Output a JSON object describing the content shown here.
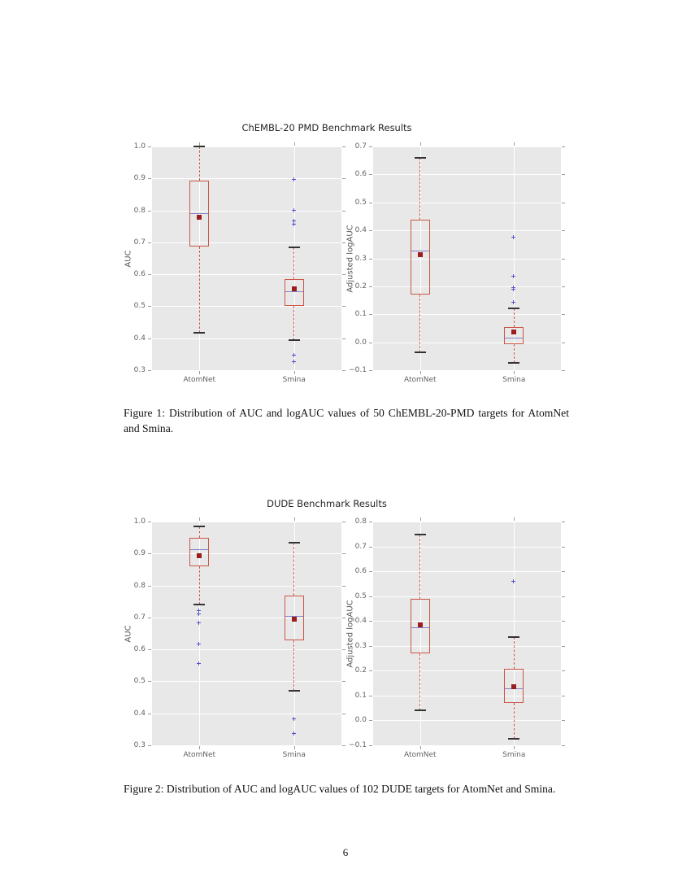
{
  "page": {
    "number": "6"
  },
  "style": {
    "plot_bg": "#e8e8e8",
    "grid": "#ffffff",
    "box_color": "#cb5747",
    "median_color": "#8383cd",
    "mean_color": "#9b1d1d",
    "flier_color": "#5353c8",
    "cap_color": "#333333",
    "tick_color": "#9a9a9a",
    "tick_label_color": "#626262",
    "title_color": "#262626"
  },
  "chart_data": [
    {
      "type": "boxplot",
      "title": "ChEMBL-20 PMD Benchmark Results",
      "caption": "Figure 1: Distribution of AUC and logAUC values of 50 ChEMBL-20-PMD targets for AtomNet and Smina.",
      "panels": [
        {
          "ylabel": "AUC",
          "ylim": [
            0.3,
            1.0
          ],
          "yticks": [
            0.3,
            0.4,
            0.5,
            0.6,
            0.7,
            0.8,
            0.9,
            1.0
          ],
          "categories": [
            "AtomNet",
            "Smina"
          ],
          "grid": true,
          "boxes": [
            {
              "label": "AtomNet",
              "whislo": 0.417,
              "q1": 0.688,
              "med": 0.791,
              "mean": 0.779,
              "q3": 0.893,
              "whishi": 0.999,
              "fliers": []
            },
            {
              "label": "Smina",
              "whislo": 0.393,
              "q1": 0.5,
              "med": 0.547,
              "mean": 0.555,
              "q3": 0.585,
              "whishi": 0.685,
              "fliers": [
                0.897,
                0.8,
                0.768,
                0.757,
                0.347,
                0.328
              ]
            }
          ]
        },
        {
          "ylabel": "Adjusted logAUC",
          "ylim": [
            -0.1,
            0.7
          ],
          "yticks": [
            -0.1,
            0.0,
            0.1,
            0.2,
            0.3,
            0.4,
            0.5,
            0.6,
            0.7
          ],
          "categories": [
            "AtomNet",
            "Smina"
          ],
          "grid": true,
          "boxes": [
            {
              "label": "AtomNet",
              "whislo": -0.037,
              "q1": 0.17,
              "med": 0.327,
              "mean": 0.314,
              "q3": 0.438,
              "whishi": 0.66,
              "fliers": []
            },
            {
              "label": "Smina",
              "whislo": -0.075,
              "q1": -0.008,
              "med": 0.015,
              "mean": 0.036,
              "q3": 0.055,
              "whishi": 0.122,
              "fliers": [
                0.375,
                0.235,
                0.195,
                0.19,
                0.142
              ]
            }
          ]
        }
      ]
    },
    {
      "type": "boxplot",
      "title": "DUDE Benchmark Results",
      "caption": "Figure 2: Distribution of AUC and logAUC values of 102 DUDE targets for AtomNet and Smina.",
      "panels": [
        {
          "ylabel": "AUC",
          "ylim": [
            0.3,
            1.0
          ],
          "yticks": [
            0.3,
            0.4,
            0.5,
            0.6,
            0.7,
            0.8,
            0.9,
            1.0
          ],
          "categories": [
            "AtomNet",
            "Smina"
          ],
          "grid": true,
          "boxes": [
            {
              "label": "AtomNet",
              "whislo": 0.74,
              "q1": 0.86,
              "med": 0.913,
              "mean": 0.894,
              "q3": 0.95,
              "whishi": 0.985,
              "fliers": [
                0.721,
                0.71,
                0.683,
                0.617,
                0.555
              ]
            },
            {
              "label": "Smina",
              "whislo": 0.47,
              "q1": 0.628,
              "med": 0.704,
              "mean": 0.695,
              "q3": 0.768,
              "whishi": 0.933,
              "fliers": [
                0.383,
                0.337
              ]
            }
          ]
        },
        {
          "ylabel": "Adjusted logAUC",
          "ylim": [
            -0.1,
            0.8
          ],
          "yticks": [
            -0.1,
            0.0,
            0.1,
            0.2,
            0.3,
            0.4,
            0.5,
            0.6,
            0.7,
            0.8
          ],
          "categories": [
            "AtomNet",
            "Smina"
          ],
          "grid": true,
          "boxes": [
            {
              "label": "AtomNet",
              "whislo": 0.04,
              "q1": 0.27,
              "med": 0.376,
              "mean": 0.383,
              "q3": 0.488,
              "whishi": 0.747,
              "fliers": []
            },
            {
              "label": "Smina",
              "whislo": -0.075,
              "q1": 0.07,
              "med": 0.13,
              "mean": 0.136,
              "q3": 0.207,
              "whishi": 0.334,
              "fliers": [
                0.558
              ]
            }
          ]
        }
      ]
    }
  ]
}
